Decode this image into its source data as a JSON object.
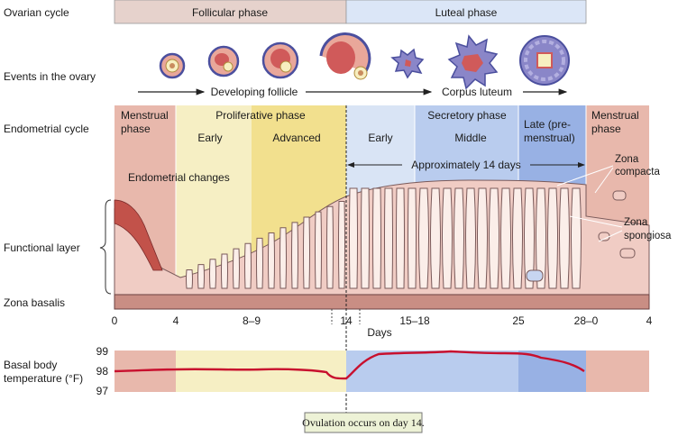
{
  "row_labels": {
    "ovarian_cycle": "Ovarian cycle",
    "events_in_ovary": "Events in the ovary",
    "endometrial_cycle": "Endometrial cycle",
    "functional_layer": "Functional layer",
    "zona_basalis": "Zona basalis",
    "basal_body_temperature": [
      "Basal body",
      "temperature (°F)"
    ]
  },
  "ovarian_phases": {
    "follicular": "Follicular phase",
    "luteal": "Luteal phase"
  },
  "ovary_arrows": {
    "developing_follicle": "Developing follicle",
    "corpus_luteum": "Corpus luteum"
  },
  "endometrial_phases": {
    "menstrual_start": [
      "Menstrual",
      "phase"
    ],
    "proliferative": "Proliferative phase",
    "early": "Early",
    "advanced": "Advanced",
    "early_secretory": "Early",
    "secretory": "Secretory phase",
    "middle": "Middle",
    "late": [
      "Late (pre-",
      "menstrual)"
    ],
    "menstrual_end": [
      "Menstrual",
      "phase"
    ]
  },
  "annotations": {
    "endometrial_changes": "Endometrial changes",
    "approx_14_days": "Approximately 14 days",
    "zona_compacta": [
      "Zona",
      "compacta"
    ],
    "zona_spongiosa": [
      "Zona",
      "spongiosa"
    ]
  },
  "day_axis": {
    "ticks": [
      "0",
      "4",
      "8–9",
      "14",
      "15–18",
      "25",
      "28–0",
      "4"
    ],
    "label": "Days"
  },
  "temperature_axis": {
    "ticks": [
      "99",
      "98",
      "97"
    ]
  },
  "ovulation_note": "Ovulation occurs on day 14.",
  "colors": {
    "menstrual": "#e8b8ac",
    "proliferative_early": "#f6efc4",
    "proliferative_advanced": "#f2e08e",
    "secretory_early": "#d9e4f5",
    "secretory_middle": "#b9ccee",
    "late": "#98b1e4",
    "temperature_line": "#c8102e",
    "ovulation_box": "#edf2d6"
  }
}
